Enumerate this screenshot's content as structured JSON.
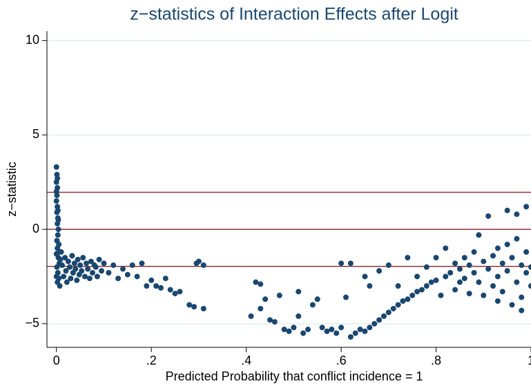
{
  "chart_data": {
    "type": "scatter",
    "title": "z−statistics of Interaction Effects after Logit",
    "x_label": "Predicted Probability that conflict incidence = 1",
    "y_label": "z−statistic",
    "color": "#1a476f",
    "reference_lines": [
      1.96,
      0,
      -1.96
    ],
    "reference_color": "#90353b",
    "grid": true,
    "xlim": [
      -0.02,
      1.0
    ],
    "ylim": [
      -6.25,
      10.5
    ],
    "xticks": [
      0,
      {
        "value": 0.2,
        "label": ".2"
      },
      {
        "value": 0.4,
        "label": ".4"
      },
      {
        "value": 0.6,
        "label": ".6"
      },
      {
        "value": 0.8,
        "label": ".8"
      },
      1
    ],
    "yticks": [
      {
        "value": -5,
        "label": "−5"
      },
      0,
      5,
      10
    ],
    "x": [
      0.0,
      0.001,
      0.0,
      0.002,
      0.001,
      0.0,
      0.002,
      0.001,
      0.003,
      0.002,
      0.004,
      0.003,
      0.001,
      0.005,
      0.002,
      0.0,
      0.004,
      0.006,
      0.001,
      0.003,
      0.005,
      0.002,
      0.007,
      0.0,
      0.006,
      0.008,
      0.004,
      0.003,
      0.0,
      0.002,
      0.01,
      0.012,
      0.015,
      0.018,
      0.02,
      0.022,
      0.025,
      0.028,
      0.03,
      0.033,
      0.035,
      0.038,
      0.04,
      0.043,
      0.045,
      0.048,
      0.05,
      0.053,
      0.056,
      0.06,
      0.063,
      0.066,
      0.07,
      0.073,
      0.076,
      0.08,
      0.083,
      0.086,
      0.09,
      0.095,
      0.1,
      0.11,
      0.12,
      0.13,
      0.14,
      0.15,
      0.16,
      0.17,
      0.18,
      0.19,
      0.2,
      0.21,
      0.22,
      0.23,
      0.24,
      0.25,
      0.26,
      0.28,
      0.29,
      0.3,
      0.31,
      0.31,
      0.295,
      0.41,
      0.42,
      0.43,
      0.43,
      0.44,
      0.45,
      0.46,
      0.47,
      0.48,
      0.49,
      0.5,
      0.51,
      0.51,
      0.52,
      0.53,
      0.54,
      0.55,
      0.56,
      0.57,
      0.58,
      0.59,
      0.6,
      0.6,
      0.61,
      0.62,
      0.62,
      0.63,
      0.64,
      0.65,
      0.65,
      0.66,
      0.66,
      0.67,
      0.68,
      0.68,
      0.69,
      0.7,
      0.7,
      0.71,
      0.72,
      0.72,
      0.73,
      0.74,
      0.74,
      0.75,
      0.76,
      0.76,
      0.77,
      0.78,
      0.78,
      0.79,
      0.8,
      0.8,
      0.81,
      0.82,
      0.82,
      0.83,
      0.84,
      0.84,
      0.85,
      0.85,
      0.86,
      0.86,
      0.87,
      0.87,
      0.88,
      0.88,
      0.89,
      0.89,
      0.9,
      0.9,
      0.91,
      0.91,
      0.92,
      0.92,
      0.93,
      0.93,
      0.94,
      0.94,
      0.95,
      0.95,
      0.96,
      0.96,
      0.97,
      0.97,
      0.98,
      0.98,
      0.98,
      0.99,
      0.99,
      0.99,
      1.0,
      1.0,
      0.97,
      0.95,
      0.93
    ],
    "values": [
      3.3,
      2.9,
      2.5,
      2.2,
      1.8,
      1.5,
      1.2,
      0.9,
      0.6,
      0.3,
      0.0,
      -0.3,
      -0.6,
      -0.8,
      -1.0,
      -1.3,
      -1.5,
      -1.8,
      -2.0,
      -2.3,
      -2.6,
      -2.8,
      -3.0,
      -2.5,
      -1.2,
      -1.6,
      0.5,
      1.0,
      2.0,
      2.7,
      -1.2,
      -1.9,
      -2.5,
      -1.5,
      -2.2,
      -2.8,
      -1.7,
      -2.0,
      -2.6,
      -1.4,
      -2.3,
      -1.8,
      -2.1,
      -2.7,
      -1.6,
      -2.4,
      -1.9,
      -2.2,
      -1.5,
      -2.5,
      -1.8,
      -2.1,
      -2.6,
      -1.7,
      -2.3,
      -1.9,
      -2.0,
      -2.5,
      -1.6,
      -2.2,
      -1.8,
      -2.3,
      -1.9,
      -2.6,
      -2.1,
      -2.4,
      -1.9,
      -2.5,
      -1.8,
      -3.0,
      -2.7,
      -3.0,
      -3.1,
      -2.6,
      -3.2,
      -3.4,
      -3.3,
      -4.0,
      -4.1,
      -1.7,
      -4.2,
      -1.9,
      -1.8,
      -4.6,
      -2.8,
      -2.9,
      -4.2,
      -3.7,
      -4.8,
      -4.9,
      -3.5,
      -5.3,
      -5.4,
      -5.2,
      -4.6,
      -3.3,
      -5.5,
      -5.3,
      -4.0,
      -3.7,
      -5.2,
      -5.4,
      -5.3,
      -5.5,
      -5.2,
      -1.8,
      -3.6,
      -1.8,
      -5.7,
      -5.5,
      -5.3,
      -2.5,
      -5.4,
      -3.0,
      -5.2,
      -5.0,
      -4.8,
      -2.2,
      -4.6,
      -4.4,
      -1.9,
      -4.2,
      -4.0,
      -3.0,
      -3.8,
      -3.7,
      -1.5,
      -3.5,
      -3.3,
      -2.5,
      -3.2,
      -3.0,
      -2.0,
      -2.8,
      -2.7,
      -1.5,
      -3.5,
      -2.5,
      -1.0,
      -2.3,
      -3.2,
      -1.8,
      -2.1,
      -2.8,
      -1.5,
      -2.6,
      -3.4,
      -1.9,
      -2.3,
      -1.2,
      -2.8,
      -0.3,
      -1.7,
      -3.5,
      -2.1,
      0.7,
      -1.4,
      -3.0,
      -2.5,
      -1.0,
      -3.3,
      -1.8,
      -2.2,
      1.0,
      -1.5,
      -4.0,
      -2.8,
      -0.5,
      -1.9,
      -3.6,
      -4.3,
      -2.3,
      1.2,
      -1.2,
      -2.0,
      -3.0,
      0.8,
      -0.8,
      -3.8
    ]
  }
}
